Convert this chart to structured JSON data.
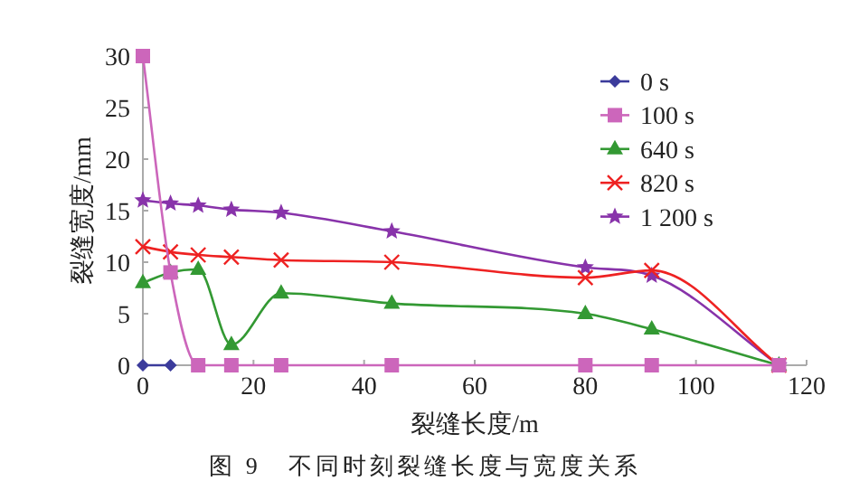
{
  "chart_data": {
    "type": "line",
    "title": "图 9　不同时刻裂缝长度与宽度关系",
    "xlabel": "裂缝长度/m",
    "ylabel": "裂缝宽度/mm",
    "x": [
      0,
      5,
      10,
      16,
      25,
      45,
      80,
      92,
      115
    ],
    "xlim": [
      0,
      120
    ],
    "xticks": [
      0,
      20,
      40,
      60,
      80,
      100,
      120
    ],
    "ylim": [
      0,
      30
    ],
    "yticks": [
      0,
      5,
      10,
      15,
      20,
      25,
      30
    ],
    "grid": false,
    "legend": "top right",
    "series": [
      {
        "name": "0 s",
        "color": "#3b3b9b",
        "marker": "diamond",
        "x": [
          0,
          5
        ],
        "values": [
          0,
          0
        ]
      },
      {
        "name": "100 s",
        "color": "#cc66bb",
        "marker": "square",
        "values": [
          30,
          9,
          0,
          0,
          0,
          0,
          0,
          0,
          0
        ]
      },
      {
        "name": "640 s",
        "color": "#339933",
        "marker": "triangle",
        "values": [
          8,
          9,
          9.3,
          2,
          7,
          6,
          5,
          3.5,
          0
        ]
      },
      {
        "name": "820 s",
        "color": "#ee2222",
        "marker": "cross",
        "values": [
          11.5,
          11,
          10.7,
          10.5,
          10.2,
          10,
          8.5,
          9.2,
          0
        ]
      },
      {
        "name": "1 200 s",
        "color": "#8833aa",
        "marker": "star",
        "values": [
          16,
          15.7,
          15.5,
          15.1,
          14.8,
          13,
          9.5,
          8.7,
          0
        ]
      }
    ]
  }
}
